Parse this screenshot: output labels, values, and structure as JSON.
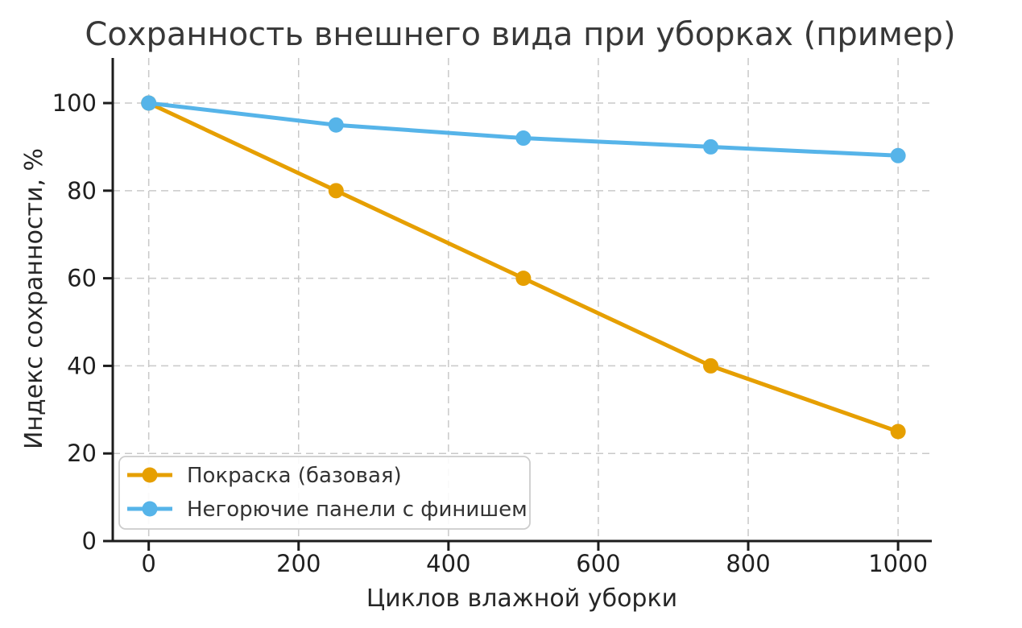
{
  "figure": {
    "background": "#ffffff"
  },
  "chart_data": {
    "type": "line",
    "title": "Сохранность внешнего вида при уборках (пример)",
    "xlabel": "Циклов влажной уборки",
    "ylabel": "Индекс сохранности, %",
    "x": [
      0,
      250,
      500,
      750,
      1000
    ],
    "series": [
      {
        "name": "Покраска (базовая)",
        "color": "#E69F00",
        "values": [
          100,
          80,
          60,
          40,
          25
        ]
      },
      {
        "name": "Негорючие панели с финишем",
        "color": "#56B4E9",
        "values": [
          100,
          95,
          92,
          90,
          88
        ]
      }
    ],
    "xlim": [
      -48,
      1045
    ],
    "ylim": [
      0,
      110.3
    ],
    "xticks": [
      0,
      200,
      400,
      600,
      800,
      1000
    ],
    "yticks": [
      0,
      20,
      40,
      60,
      80,
      100
    ],
    "grid": true,
    "grid_style": "dashed",
    "legend_position": "lower left",
    "style": {
      "grid_color": "#c9c9c9",
      "spine_color": "#1c1c1c",
      "legend_border_color": "#cccccc",
      "legend_background": "#ffffff",
      "line_width": 5,
      "marker_radius": 9.5
    }
  }
}
